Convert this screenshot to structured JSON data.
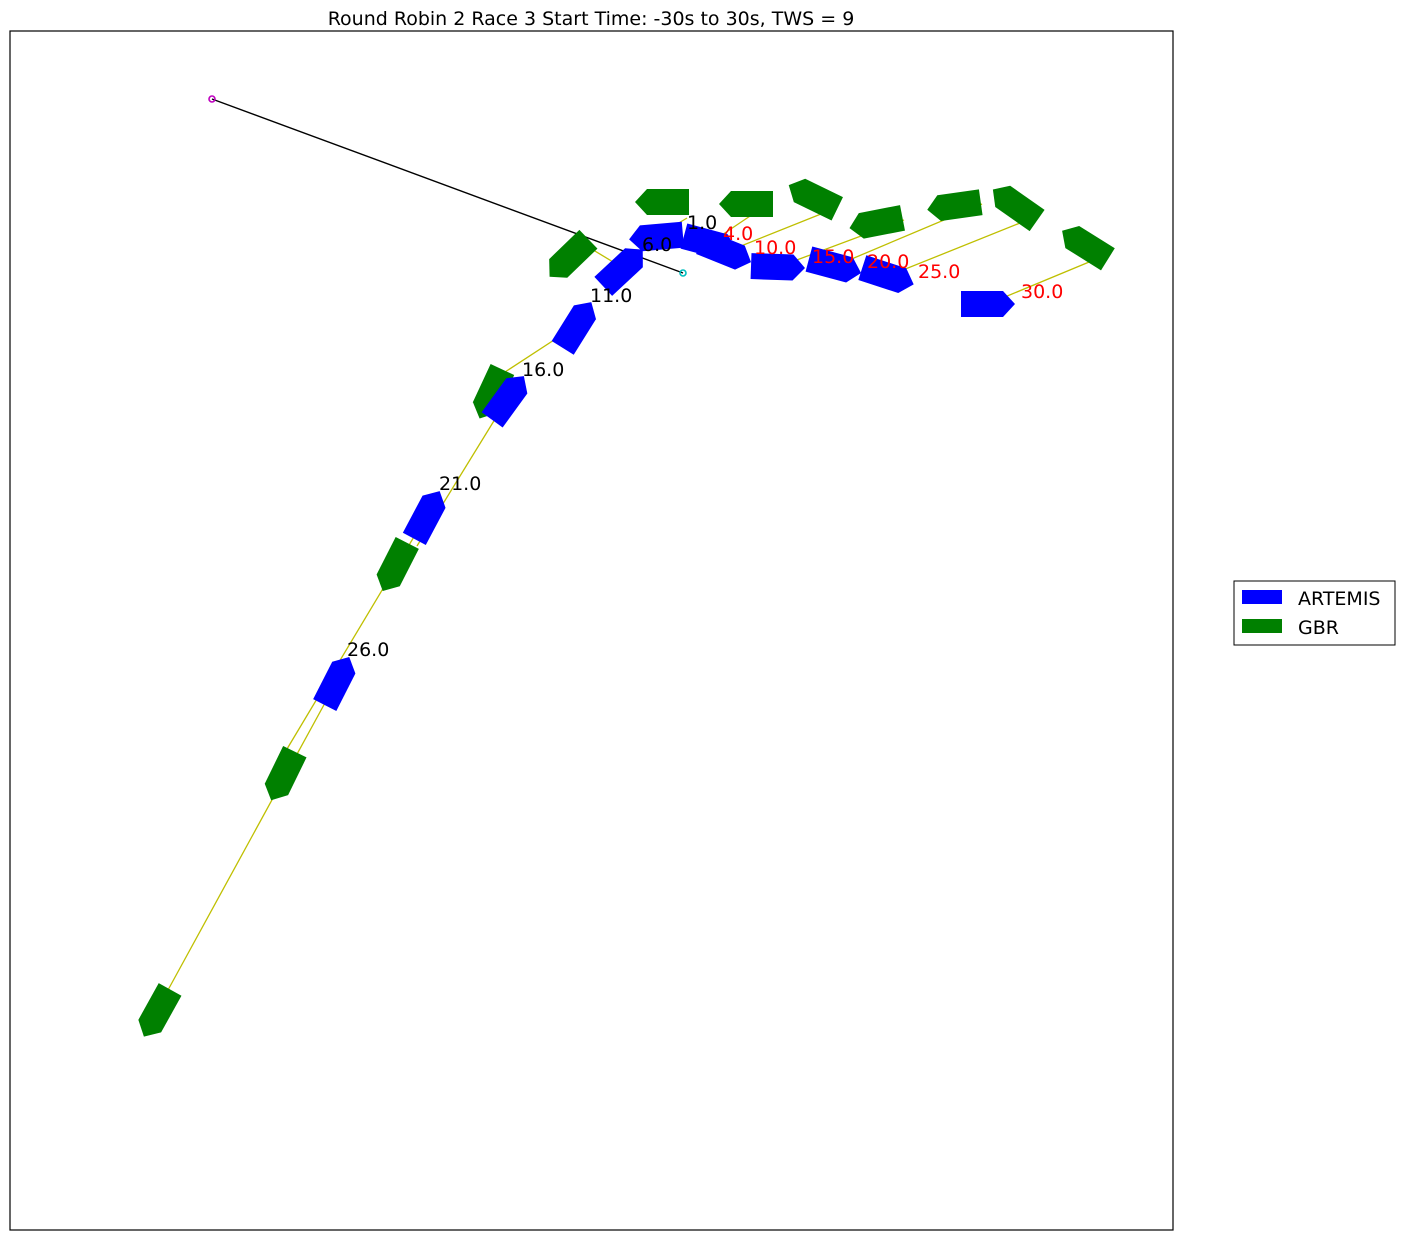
{
  "chart_data": {
    "type": "scatter",
    "title": "Round Robin 2 Race 3 Start Time: -30s to 30s, TWS = 9",
    "xlabel": "",
    "ylabel": "",
    "grid": false,
    "legend_placement": "right",
    "colors": {
      "ARTEMIS": "#0000ff",
      "GBR": "#008000",
      "pair_line": "#bfbf00",
      "start_line": "#000000",
      "pin_end": "#bf00bf",
      "committee_end": "#00bfbf",
      "label_before_start": "#000000",
      "label_after_start": "#ff0000"
    },
    "start_line": {
      "pin_end": [
        212,
        99
      ],
      "committee_end": [
        683,
        273
      ]
    },
    "series": [
      {
        "name": "ARTEMIS",
        "points": [
          {
            "t": 1,
            "x": 656,
            "y": 237,
            "heading": 265,
            "pair": [
              687,
              218
            ]
          },
          {
            "t": 4,
            "x": 710,
            "y": 243,
            "heading": 105,
            "pair": [
              762,
              208
            ]
          },
          {
            "t": 6,
            "x": 623,
            "y": 268,
            "heading": 47,
            "pair": [
              585,
              245
            ]
          },
          {
            "t": 10,
            "x": 726,
            "y": 252,
            "heading": 112,
            "pair": [
              836,
              208
            ]
          },
          {
            "t": 11,
            "x": 577,
            "y": 325,
            "heading": 32,
            "pair": [
              505,
              372
            ]
          },
          {
            "t": 15,
            "x": 778,
            "y": 267,
            "heading": 92,
            "pair": [
              904,
              220
            ]
          },
          {
            "t": 16,
            "x": 508,
            "y": 398,
            "heading": 36,
            "pair": [
              417,
              546
            ]
          },
          {
            "t": 20,
            "x": 835,
            "y": 266,
            "heading": 105,
            "pair": [
              982,
              204
            ]
          },
          {
            "t": 21,
            "x": 427,
            "y": 515,
            "heading": 28,
            "pair": [
              284,
              754
            ]
          },
          {
            "t": 25,
            "x": 888,
            "y": 276,
            "heading": 108,
            "pair": [
              1035,
              217
            ]
          },
          {
            "t": 26,
            "x": 337,
            "y": 681,
            "heading": 27,
            "pair": [
              168,
              990
            ]
          },
          {
            "t": 30,
            "x": 988,
            "y": 304,
            "heading": 90,
            "pair": [
              1106,
              255
            ]
          }
        ]
      },
      {
        "name": "GBR",
        "points": [
          {
            "t": 1,
            "x": 662,
            "y": 202,
            "heading": 270
          },
          {
            "t": 4,
            "x": 746,
            "y": 204,
            "heading": 270
          },
          {
            "t": 6,
            "x": 569,
            "y": 258,
            "heading": 226
          },
          {
            "t": 10,
            "x": 813,
            "y": 197,
            "heading": 296
          },
          {
            "t": 11,
            "x": 491,
            "y": 394,
            "heading": 205
          },
          {
            "t": 15,
            "x": 876,
            "y": 223,
            "heading": 259
          },
          {
            "t": 16,
            "x": 395,
            "y": 567,
            "heading": 207
          },
          {
            "t": 20,
            "x": 954,
            "y": 206,
            "heading": 262
          },
          {
            "t": 21,
            "x": 283,
            "y": 776,
            "heading": 206
          },
          {
            "t": 25,
            "x": 1015,
            "y": 205,
            "heading": 305
          },
          {
            "t": 26,
            "x": 157,
            "y": 1013,
            "heading": 209
          },
          {
            "t": 30,
            "x": 1085,
            "y": 245,
            "heading": 302
          }
        ]
      }
    ],
    "time_labels": [
      {
        "text": "1.0",
        "t": 1,
        "phase": "before"
      },
      {
        "text": "6.0",
        "t": 6,
        "phase": "before"
      },
      {
        "text": "11.0",
        "t": 11,
        "phase": "before"
      },
      {
        "text": "16.0",
        "t": 16,
        "phase": "before"
      },
      {
        "text": "21.0",
        "t": 21,
        "phase": "before"
      },
      {
        "text": "26.0",
        "t": 26,
        "phase": "before"
      },
      {
        "text": "4.0",
        "t": 4,
        "phase": "after"
      },
      {
        "text": "10.0",
        "t": 10,
        "phase": "after"
      },
      {
        "text": "15.0",
        "t": 15,
        "phase": "after"
      },
      {
        "text": "20.0",
        "t": 20,
        "phase": "after"
      },
      {
        "text": "25.0",
        "t": 25,
        "phase": "after"
      },
      {
        "text": "30.0",
        "t": 30,
        "phase": "after"
      }
    ],
    "legend": [
      {
        "label": "ARTEMIS",
        "color": "#0000ff"
      },
      {
        "label": "GBR",
        "color": "#008000"
      }
    ]
  }
}
